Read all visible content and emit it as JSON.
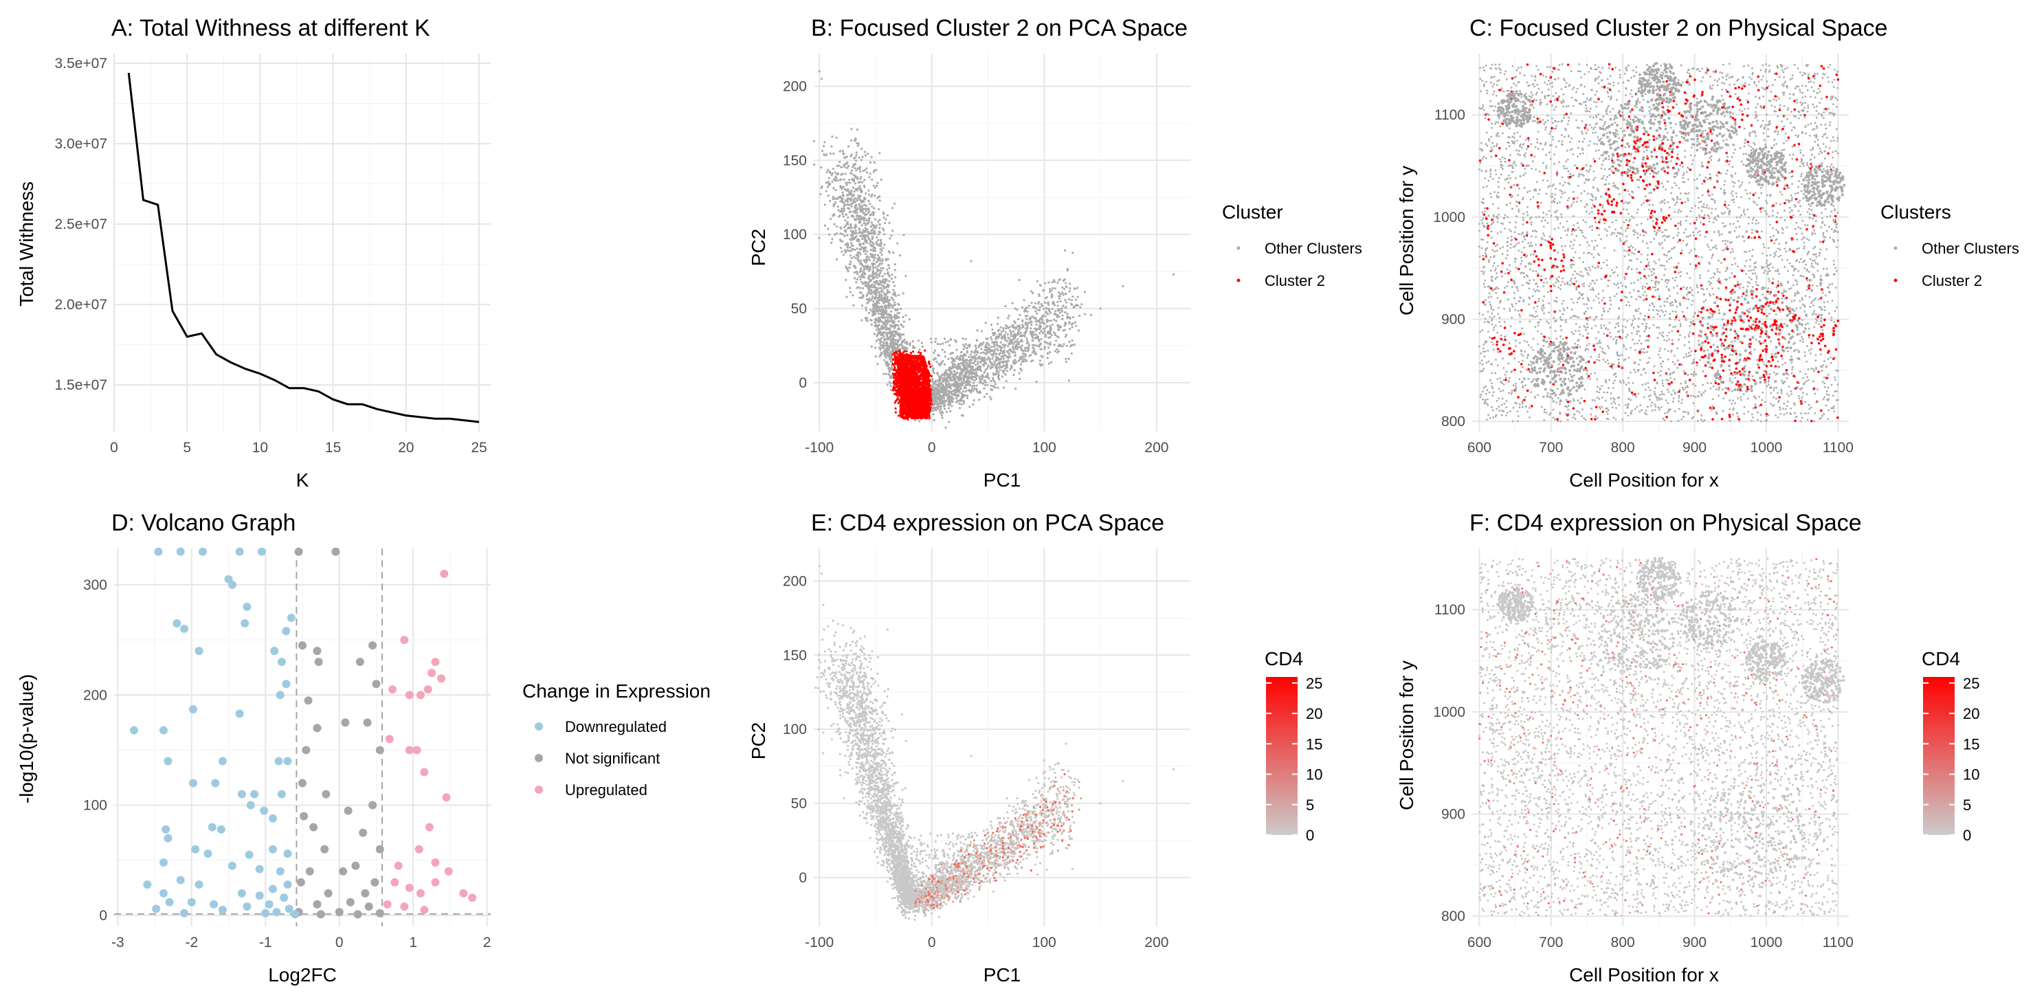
{
  "chart_data": [
    {
      "id": "A",
      "type": "line",
      "title": "A: Total Withness at different K",
      "xlabel": "K",
      "ylabel": "Total Withness",
      "xlim": [
        0,
        25.8
      ],
      "ylim": [
        12100000,
        35600000
      ],
      "x_ticks": [
        0,
        5,
        10,
        15,
        20,
        25
      ],
      "y_ticks": [
        15000000,
        20000000,
        25000000,
        30000000,
        35000000
      ],
      "y_tick_labels": [
        "1.5e+07",
        "2.0e+07",
        "2.5e+07",
        "3.0e+07",
        "3.5e+07"
      ],
      "grid": true,
      "x": [
        1,
        2,
        3,
        4,
        5,
        6,
        7,
        8,
        9,
        10,
        11,
        12,
        13,
        14,
        15,
        16,
        17,
        18,
        19,
        20,
        21,
        22,
        23,
        24,
        25
      ],
      "values": [
        34400000,
        26500000,
        26200000,
        19600000,
        18000000,
        18200000,
        16900000,
        16400000,
        16000000,
        15700000,
        15300000,
        14800000,
        14800000,
        14600000,
        14100000,
        13800000,
        13800000,
        13500000,
        13300000,
        13100000,
        13000000,
        12900000,
        12900000,
        12800000,
        12700000
      ],
      "color": "#000000"
    },
    {
      "id": "B",
      "type": "scatter",
      "title": "B: Focused Cluster 2 on PCA Space",
      "xlabel": "PC1",
      "ylabel": "PC2",
      "xlim": [
        -105,
        230
      ],
      "ylim": [
        -33,
        222
      ],
      "x_ticks": [
        -100,
        0,
        100,
        200
      ],
      "y_ticks": [
        0,
        50,
        100,
        150,
        200
      ],
      "grid": true,
      "legend": {
        "title": "Cluster",
        "position": "right",
        "entries": [
          {
            "label": "Other Clusters",
            "color": "#aaaaaa"
          },
          {
            "label": "Cluster 2",
            "color": "#ff0000"
          }
        ]
      }
    },
    {
      "id": "C",
      "type": "scatter",
      "title": "C: Focused Cluster 2 on Physical Space",
      "xlabel": "Cell Position for x",
      "ylabel": "Cell Position for y",
      "xlim": [
        590,
        1115
      ],
      "ylim": [
        790,
        1160
      ],
      "x_ticks": [
        600,
        700,
        800,
        900,
        1000,
        1100
      ],
      "y_ticks": [
        800,
        900,
        1000,
        1100
      ],
      "grid": true,
      "legend": {
        "title": "Clusters",
        "position": "right",
        "entries": [
          {
            "label": "Other Clusters",
            "color": "#aaaaaa"
          },
          {
            "label": "Cluster 2",
            "color": "#ff0000"
          }
        ]
      }
    },
    {
      "id": "D",
      "type": "scatter",
      "title": "D: Volcano Graph",
      "xlabel": "Log2FC",
      "ylabel": "-log10(p-value)",
      "xlim": [
        -3.05,
        2.05
      ],
      "ylim": [
        -10,
        333
      ],
      "x_ticks": [
        -3,
        -2,
        -1,
        0,
        1,
        2
      ],
      "y_ticks": [
        0,
        100,
        200,
        300
      ],
      "grid": true,
      "thresholds": {
        "log2fc": [
          -0.58,
          0.58
        ],
        "pvalue": 1.3
      },
      "legend": {
        "title": "Change in Expression",
        "position": "right",
        "entries": [
          {
            "label": "Downregulated",
            "color": "#9ecae1"
          },
          {
            "label": "Not significant",
            "color": "#a6a6a6"
          },
          {
            "label": "Upregulated",
            "color": "#f4a6b9"
          }
        ]
      },
      "series": [
        {
          "name": "Upregulated",
          "color": "#f4a6b9",
          "points": [
            [
              1.42,
              310
            ],
            [
              1.3,
              230
            ],
            [
              1.25,
              220
            ],
            [
              1.38,
              215
            ],
            [
              1.2,
              205
            ],
            [
              1.1,
              200
            ],
            [
              0.95,
              200
            ],
            [
              0.88,
              250
            ],
            [
              0.72,
              205
            ],
            [
              0.68,
              160
            ],
            [
              0.95,
              150
            ],
            [
              1.05,
              150
            ],
            [
              1.15,
              130
            ],
            [
              1.45,
              107
            ],
            [
              1.22,
              80
            ],
            [
              1.08,
              60
            ],
            [
              0.8,
              45
            ],
            [
              1.3,
              48
            ],
            [
              1.48,
              40
            ],
            [
              0.75,
              30
            ],
            [
              0.95,
              25
            ],
            [
              1.1,
              20
            ],
            [
              1.3,
              30
            ],
            [
              1.68,
              20
            ],
            [
              1.8,
              16
            ],
            [
              0.65,
              10
            ],
            [
              0.88,
              8
            ],
            [
              1.15,
              5
            ]
          ]
        },
        {
          "name": "Not significant",
          "color": "#a6a6a6",
          "points": [
            [
              -0.05,
              330
            ],
            [
              -0.55,
              330
            ],
            [
              -0.5,
              245
            ],
            [
              -0.3,
              240
            ],
            [
              -0.28,
              230
            ],
            [
              0.45,
              245
            ],
            [
              0.28,
              230
            ],
            [
              0.5,
              210
            ],
            [
              -0.42,
              195
            ],
            [
              -0.3,
              170
            ],
            [
              0.08,
              175
            ],
            [
              0.38,
              175
            ],
            [
              0.55,
              150
            ],
            [
              -0.45,
              150
            ],
            [
              -0.5,
              120
            ],
            [
              -0.18,
              110
            ],
            [
              0.12,
              95
            ],
            [
              0.45,
              100
            ],
            [
              -0.48,
              90
            ],
            [
              -0.35,
              80
            ],
            [
              0.32,
              75
            ],
            [
              0.55,
              60
            ],
            [
              -0.2,
              60
            ],
            [
              0.22,
              45
            ],
            [
              0.05,
              40
            ],
            [
              -0.4,
              40
            ],
            [
              0.48,
              30
            ],
            [
              -0.52,
              30
            ],
            [
              0.35,
              20
            ],
            [
              -0.15,
              20
            ],
            [
              0.15,
              12
            ],
            [
              -0.3,
              10
            ],
            [
              0.4,
              8
            ],
            [
              0,
              3
            ],
            [
              -0.55,
              3
            ],
            [
              0.55,
              2
            ],
            [
              -0.25,
              1
            ],
            [
              0.25,
              1
            ]
          ]
        },
        {
          "name": "Downregulated",
          "color": "#9ecae1",
          "points": [
            [
              -2.45,
              330
            ],
            [
              -2.15,
              330
            ],
            [
              -1.85,
              330
            ],
            [
              -1.35,
              330
            ],
            [
              -1.05,
              330
            ],
            [
              -1.5,
              305
            ],
            [
              -1.45,
              300
            ],
            [
              -1.25,
              280
            ],
            [
              -0.65,
              270
            ],
            [
              -0.72,
              258
            ],
            [
              -2.2,
              265
            ],
            [
              -2.1,
              260
            ],
            [
              -1.28,
              265
            ],
            [
              -1.9,
              240
            ],
            [
              -0.88,
              240
            ],
            [
              -0.78,
              230
            ],
            [
              -2.78,
              168
            ],
            [
              -2.38,
              168
            ],
            [
              -1.98,
              187
            ],
            [
              -1.35,
              183
            ],
            [
              -0.8,
              200
            ],
            [
              -0.72,
              210
            ],
            [
              -2.32,
              140
            ],
            [
              -1.58,
              140
            ],
            [
              -0.82,
              140
            ],
            [
              -0.7,
              140
            ],
            [
              -1.98,
              120
            ],
            [
              -1.68,
              120
            ],
            [
              -1.32,
              110
            ],
            [
              -1.15,
              110
            ],
            [
              -0.78,
              110
            ],
            [
              -1.2,
              100
            ],
            [
              -1.02,
              95
            ],
            [
              -0.9,
              88
            ],
            [
              -2.35,
              78
            ],
            [
              -2.32,
              70
            ],
            [
              -1.72,
              80
            ],
            [
              -1.6,
              78
            ],
            [
              -1.95,
              60
            ],
            [
              -1.78,
              56
            ],
            [
              -1.22,
              55
            ],
            [
              -0.9,
              60
            ],
            [
              -0.7,
              56
            ],
            [
              -2.38,
              48
            ],
            [
              -1.45,
              45
            ],
            [
              -1.08,
              42
            ],
            [
              -0.8,
              40
            ],
            [
              -2.15,
              32
            ],
            [
              -2.6,
              28
            ],
            [
              -1.9,
              28
            ],
            [
              -0.7,
              28
            ],
            [
              -0.9,
              24
            ],
            [
              -2.38,
              20
            ],
            [
              -1.32,
              20
            ],
            [
              -1.08,
              18
            ],
            [
              -0.75,
              16
            ],
            [
              -2.3,
              12
            ],
            [
              -2.0,
              12
            ],
            [
              -1.7,
              10
            ],
            [
              -1.25,
              8
            ],
            [
              -0.95,
              10
            ],
            [
              -0.68,
              6
            ],
            [
              -2.48,
              6
            ],
            [
              -1.58,
              5
            ],
            [
              -0.85,
              3
            ],
            [
              -2.1,
              2
            ],
            [
              -1.0,
              2
            ],
            [
              -0.6,
              1
            ]
          ]
        }
      ]
    },
    {
      "id": "E",
      "type": "scatter",
      "title": "E: CD4 expression on PCA Space",
      "xlabel": "PC1",
      "ylabel": "PC2",
      "xlim": [
        -105,
        230
      ],
      "ylim": [
        -33,
        222
      ],
      "x_ticks": [
        -100,
        0,
        100,
        200
      ],
      "y_ticks": [
        0,
        50,
        100,
        150,
        200
      ],
      "grid": true,
      "colorbar": {
        "title": "CD4",
        "position": "right",
        "range": [
          0,
          26
        ],
        "ticks": [
          0,
          5,
          10,
          15,
          20,
          25
        ],
        "low_color": "#cccccc",
        "high_color": "#ff0000"
      }
    },
    {
      "id": "F",
      "type": "scatter",
      "title": "F: CD4 expression on Physical Space",
      "xlabel": "Cell Position for x",
      "ylabel": "Cell Position for y",
      "xlim": [
        590,
        1115
      ],
      "ylim": [
        790,
        1160
      ],
      "x_ticks": [
        600,
        700,
        800,
        900,
        1000,
        1100
      ],
      "y_ticks": [
        800,
        900,
        1000,
        1100
      ],
      "grid": true,
      "colorbar": {
        "title": "CD4",
        "position": "right",
        "range": [
          0,
          26
        ],
        "ticks": [
          0,
          5,
          10,
          15,
          20,
          25
        ],
        "low_color": "#cccccc",
        "high_color": "#ff0000"
      }
    }
  ]
}
